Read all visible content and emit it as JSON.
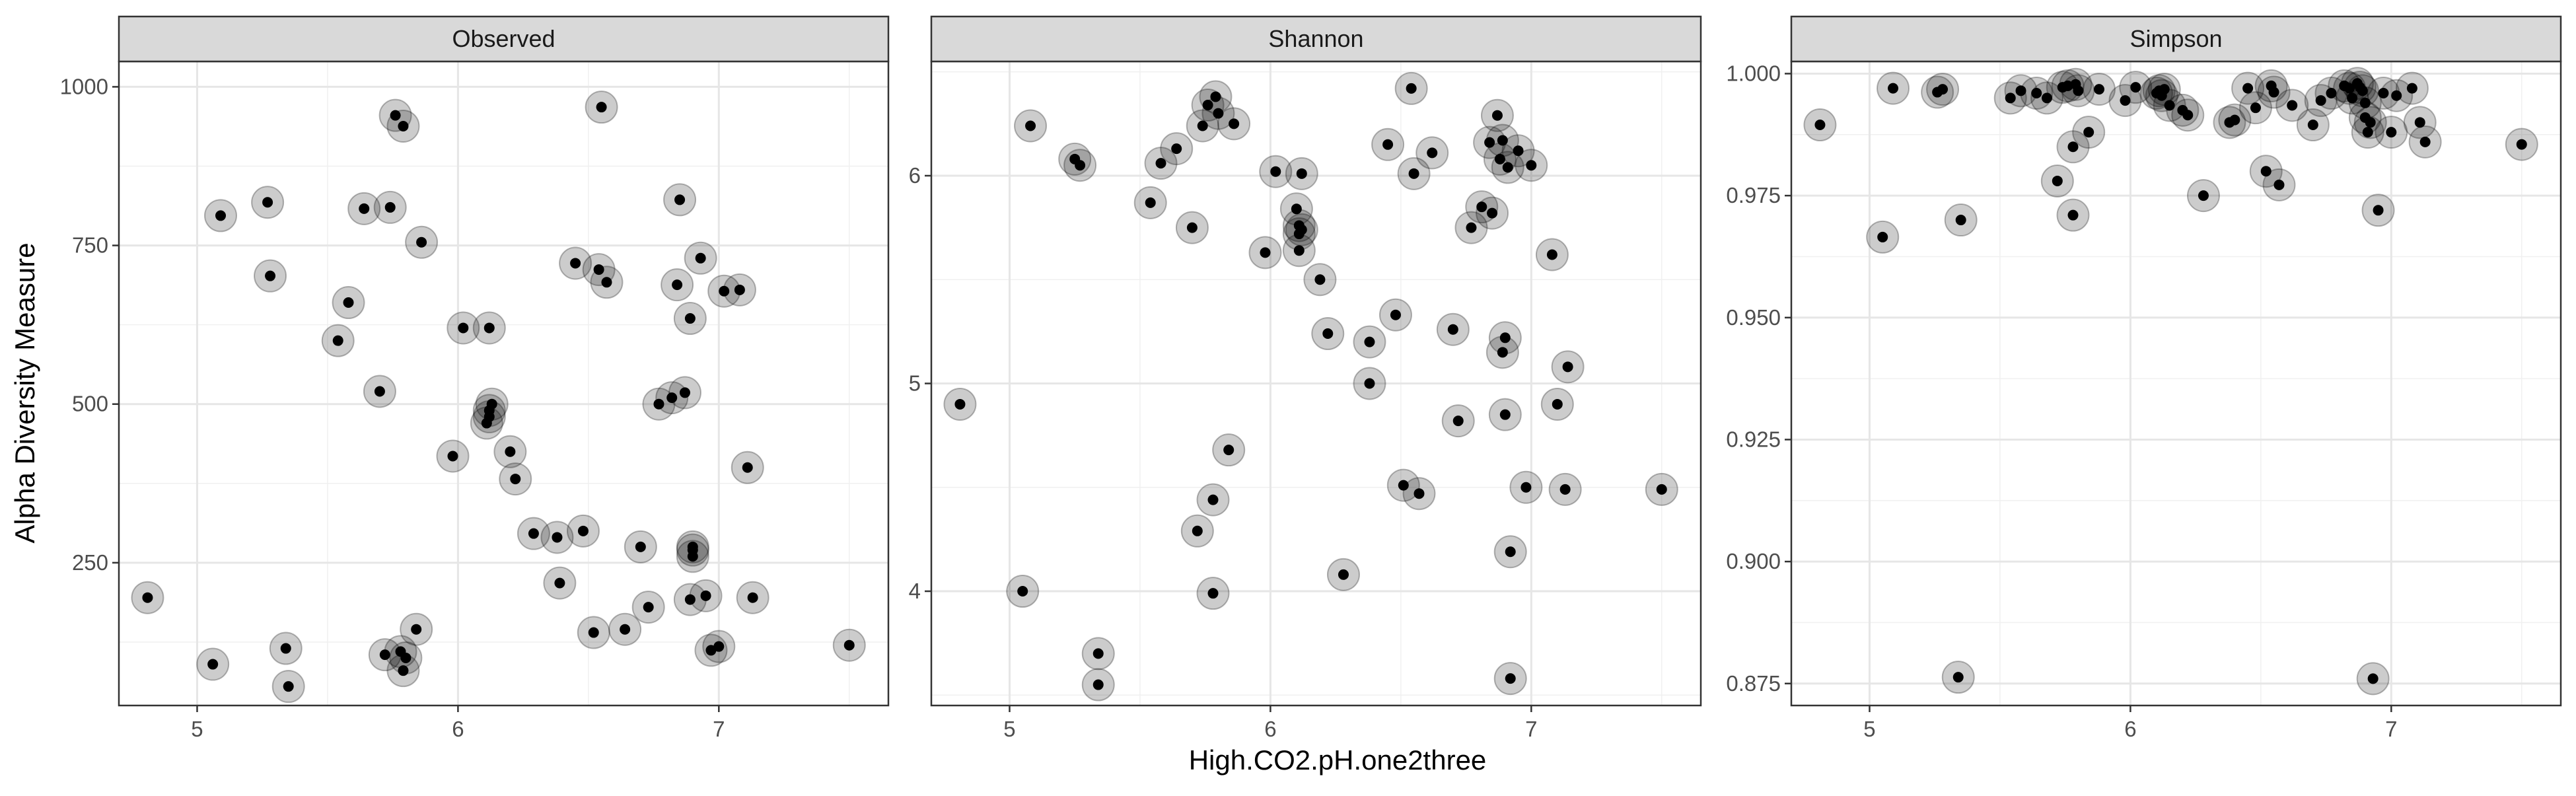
{
  "chart_data": {
    "type": "scatter",
    "xlabel": "High.CO2.pH.one2three",
    "ylabel": "Alpha Diversity Measure",
    "grid": true,
    "point_style": {
      "halo_color": "#000000",
      "halo_opacity": 0.2,
      "point_color": "#000000"
    },
    "panels": [
      {
        "title": "Observed",
        "xlim": [
          4.7,
          7.65
        ],
        "ylim": [
          25,
          1040
        ],
        "xticks": [
          5,
          6,
          7
        ],
        "yticks": [
          250,
          500,
          750,
          1000
        ],
        "x": [
          4.81,
          5.06,
          5.09,
          5.27,
          5.28,
          5.34,
          5.35,
          5.54,
          5.58,
          5.64,
          5.7,
          5.72,
          5.74,
          5.76,
          5.78,
          5.79,
          5.79,
          5.8,
          5.84,
          5.86,
          5.98,
          6.02,
          6.12,
          6.11,
          6.12,
          6.12,
          6.13,
          6.2,
          6.22,
          6.29,
          6.38,
          6.39,
          6.45,
          6.48,
          6.52,
          6.54,
          6.55,
          6.57,
          6.64,
          6.7,
          6.73,
          6.77,
          6.82,
          6.84,
          6.85,
          6.87,
          6.89,
          6.89,
          6.9,
          6.9,
          6.9,
          6.93,
          6.95,
          6.97,
          7.0,
          7.02,
          7.08,
          7.11,
          7.13,
          7.5
        ],
        "y": [
          195,
          90,
          797,
          818,
          702,
          115,
          55,
          600,
          660,
          808,
          520,
          105,
          810,
          955,
          110,
          80,
          938,
          100,
          145,
          755,
          418,
          620,
          620,
          470,
          480,
          490,
          500,
          425,
          382,
          296,
          290,
          218,
          722,
          300,
          140,
          712,
          968,
          692,
          145,
          275,
          180,
          500,
          510,
          688,
          822,
          518,
          635,
          192,
          275,
          260,
          270,
          730,
          198,
          112,
          118,
          678,
          680,
          400,
          195,
          120
        ]
      },
      {
        "title": "Shannon",
        "xlim": [
          4.7,
          7.65
        ],
        "ylim": [
          3.45,
          6.55
        ],
        "xticks": [
          5,
          6,
          7
        ],
        "yticks": [
          4,
          5,
          6
        ],
        "x": [
          4.81,
          5.05,
          5.08,
          5.25,
          5.27,
          5.34,
          5.34,
          5.54,
          5.58,
          5.64,
          5.7,
          5.72,
          5.74,
          5.76,
          5.78,
          5.78,
          5.79,
          5.8,
          5.84,
          5.86,
          5.98,
          6.02,
          6.1,
          6.11,
          6.11,
          6.11,
          6.12,
          6.12,
          6.19,
          6.22,
          6.28,
          6.38,
          6.38,
          6.45,
          6.48,
          6.51,
          6.54,
          6.55,
          6.57,
          6.62,
          6.7,
          6.72,
          6.77,
          6.81,
          6.84,
          6.85,
          6.87,
          6.88,
          6.89,
          6.89,
          6.9,
          6.9,
          6.91,
          6.92,
          6.92,
          6.95,
          6.98,
          7.0,
          7.08,
          7.1,
          7.13,
          7.14,
          7.5
        ],
        "y": [
          4.9,
          4.0,
          6.24,
          6.08,
          6.05,
          3.7,
          3.55,
          5.87,
          6.06,
          6.13,
          5.75,
          4.29,
          6.24,
          6.34,
          4.44,
          3.99,
          6.38,
          6.3,
          4.68,
          6.25,
          5.63,
          6.02,
          5.84,
          5.76,
          5.72,
          5.64,
          6.01,
          5.74,
          5.5,
          5.24,
          4.08,
          5.2,
          5.0,
          6.15,
          5.33,
          4.51,
          6.42,
          6.01,
          4.47,
          6.11,
          5.26,
          4.82,
          5.75,
          5.85,
          6.16,
          5.82,
          6.29,
          6.08,
          6.17,
          5.15,
          5.22,
          4.85,
          6.04,
          3.58,
          4.19,
          6.12,
          4.5,
          6.05,
          5.62,
          4.9,
          4.49,
          5.08,
          4.49
        ]
      },
      {
        "title": "Simpson",
        "xlim": [
          4.7,
          7.65
        ],
        "ylim": [
          0.8705,
          1.0025
        ],
        "xticks": [
          5,
          6,
          7
        ],
        "yticks": [
          0.875,
          0.9,
          0.925,
          0.95,
          0.975,
          1.0
        ],
        "ytick_labels": [
          "0.875",
          "0.900",
          "0.925",
          "0.950",
          "0.975",
          "1.000"
        ],
        "x": [
          4.81,
          5.05,
          5.09,
          5.26,
          5.28,
          5.34,
          5.35,
          5.54,
          5.58,
          5.64,
          5.68,
          5.72,
          5.74,
          5.76,
          5.78,
          5.78,
          5.79,
          5.8,
          5.84,
          5.88,
          5.98,
          6.02,
          6.1,
          6.11,
          6.12,
          6.13,
          6.15,
          6.2,
          6.22,
          6.28,
          6.38,
          6.4,
          6.45,
          6.48,
          6.52,
          6.54,
          6.55,
          6.57,
          6.62,
          6.7,
          6.73,
          6.77,
          6.82,
          6.84,
          6.85,
          6.87,
          6.88,
          6.89,
          6.9,
          6.9,
          6.91,
          6.92,
          6.93,
          6.95,
          6.97,
          7.0,
          7.02,
          7.08,
          7.11,
          7.13,
          7.5
        ],
        "y": [
          0.9895,
          0.9665,
          0.997,
          0.9962,
          0.9968,
          0.8763,
          0.97,
          0.995,
          0.9965,
          0.996,
          0.995,
          0.978,
          0.9972,
          0.9975,
          0.971,
          0.985,
          0.9978,
          0.9965,
          0.988,
          0.9968,
          0.9945,
          0.9972,
          0.996,
          0.9965,
          0.9955,
          0.9968,
          0.9935,
          0.9925,
          0.9915,
          0.975,
          0.99,
          0.9905,
          0.997,
          0.993,
          0.98,
          0.9975,
          0.9962,
          0.9772,
          0.9935,
          0.9895,
          0.9945,
          0.996,
          0.9975,
          0.997,
          0.995,
          0.998,
          0.9972,
          0.9965,
          0.994,
          0.991,
          0.988,
          0.99,
          0.876,
          0.972,
          0.996,
          0.988,
          0.9955,
          0.997,
          0.99,
          0.986,
          0.9855
        ]
      }
    ]
  }
}
